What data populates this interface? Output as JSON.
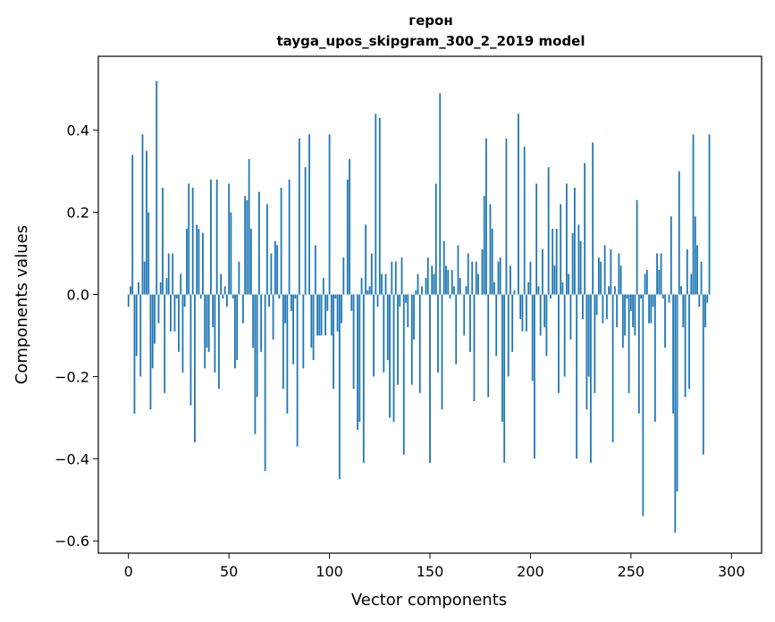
{
  "chart_data": {
    "type": "bar",
    "title": "герон",
    "subtitle": "tayga_upos_skipgram_300_2_2019 model",
    "xlabel": "Vector components",
    "ylabel": "Components values",
    "xlim": [
      -15,
      315
    ],
    "ylim": [
      -0.63,
      0.58
    ],
    "xticks": [
      0,
      50,
      100,
      150,
      200,
      250,
      300
    ],
    "xtick_labels": [
      "0",
      "50",
      "100",
      "150",
      "200",
      "250",
      "300"
    ],
    "yticks": [
      -0.6,
      -0.4,
      -0.2,
      0.0,
      0.2,
      0.4
    ],
    "ytick_labels": [
      "−0.6",
      "−0.4",
      "−0.2",
      "0.0",
      "0.2",
      "0.4"
    ],
    "grid": false,
    "bar_color": "#1f77b4",
    "values": [
      -0.03,
      0.02,
      0.34,
      -0.29,
      -0.15,
      0.03,
      -0.2,
      0.39,
      0.08,
      0.35,
      0.2,
      -0.28,
      -0.18,
      -0.12,
      0.52,
      -0.07,
      0.03,
      0.26,
      -0.24,
      0.04,
      0.1,
      -0.09,
      0.1,
      -0.09,
      -0.01,
      -0.14,
      0.05,
      -0.19,
      -0.03,
      0.16,
      0.27,
      -0.27,
      0.26,
      -0.36,
      0.17,
      0.16,
      -0.01,
      0.15,
      -0.18,
      -0.13,
      -0.14,
      0.28,
      -0.08,
      -0.19,
      0.28,
      -0.23,
      0.05,
      -0.01,
      0.02,
      -0.03,
      0.27,
      0.2,
      -0.01,
      -0.18,
      -0.16,
      0.08,
      0.0,
      -0.07,
      0.24,
      0.23,
      0.33,
      0.16,
      -0.13,
      -0.34,
      -0.25,
      0.25,
      -0.14,
      0.0,
      -0.43,
      0.22,
      -0.03,
      0.1,
      -0.11,
      0.13,
      0.12,
      -0.01,
      0.26,
      -0.23,
      -0.07,
      -0.29,
      0.28,
      -0.04,
      -0.17,
      -0.01,
      -0.37,
      0.38,
      0.0,
      -0.18,
      0.31,
      0.0,
      0.39,
      -0.13,
      -0.16,
      0.12,
      -0.1,
      -0.1,
      -0.1,
      0.04,
      -0.1,
      -0.04,
      0.39,
      -0.1,
      -0.23,
      -0.01,
      -0.09,
      -0.45,
      -0.07,
      0.09,
      0.0,
      0.28,
      0.33,
      -0.04,
      -0.23,
      0.0,
      -0.33,
      -0.31,
      0.04,
      -0.41,
      0.17,
      0.01,
      0.02,
      0.1,
      -0.2,
      0.44,
      -0.03,
      0.43,
      0.05,
      -0.19,
      0.05,
      -0.16,
      -0.3,
      0.08,
      -0.31,
      0.08,
      -0.22,
      -0.03,
      0.09,
      -0.39,
      -0.02,
      -0.08,
      0.0,
      -0.22,
      -0.11,
      0.01,
      0.05,
      -0.24,
      0.02,
      0.0,
      0.04,
      0.09,
      -0.41,
      0.07,
      0.05,
      0.27,
      -0.19,
      0.49,
      -0.28,
      0.13,
      0.07,
      0.06,
      -0.01,
      0.06,
      0.02,
      -0.17,
      0.12,
      0.04,
      0.0,
      -0.1,
      0.02,
      0.1,
      -0.14,
      0.08,
      -0.26,
      0.08,
      0.05,
      0.0,
      0.11,
      0.24,
      0.38,
      -0.25,
      0.22,
      0.16,
      0.03,
      -0.15,
      0.08,
      0.09,
      -0.31,
      -0.41,
      0.38,
      -0.2,
      0.07,
      -0.14,
      0.01,
      0.0,
      0.44,
      -0.06,
      -0.09,
      0.36,
      -0.09,
      0.03,
      0.08,
      -0.21,
      -0.4,
      0.27,
      0.02,
      -0.1,
      0.11,
      -0.08,
      -0.15,
      0.31,
      -0.01,
      0.16,
      0.07,
      0.16,
      -0.24,
      0.22,
      0.03,
      -0.2,
      0.27,
      0.05,
      -0.11,
      0.15,
      0.26,
      -0.4,
      0.17,
      0.13,
      -0.06,
      0.32,
      -0.28,
      -0.2,
      -0.41,
      0.37,
      -0.24,
      -0.05,
      0.09,
      0.08,
      -0.07,
      0.12,
      -0.06,
      0.02,
      0.11,
      -0.36,
      0.02,
      -0.08,
      0.1,
      0.07,
      -0.13,
      -0.1,
      -0.01,
      -0.24,
      -0.04,
      -0.08,
      -0.1,
      0.23,
      -0.29,
      -0.01,
      -0.54,
      0.05,
      0.06,
      -0.07,
      -0.07,
      -0.03,
      -0.31,
      0.1,
      0.06,
      0.1,
      -0.01,
      -0.13,
      0.0,
      -0.02,
      0.19,
      -0.29,
      -0.58,
      -0.48,
      0.3,
      0.02,
      -0.08,
      -0.25,
      0.11,
      -0.23,
      0.05,
      0.39,
      0.19,
      0.12,
      -0.03,
      0.08,
      -0.39,
      -0.08,
      -0.02,
      0.39
    ]
  }
}
